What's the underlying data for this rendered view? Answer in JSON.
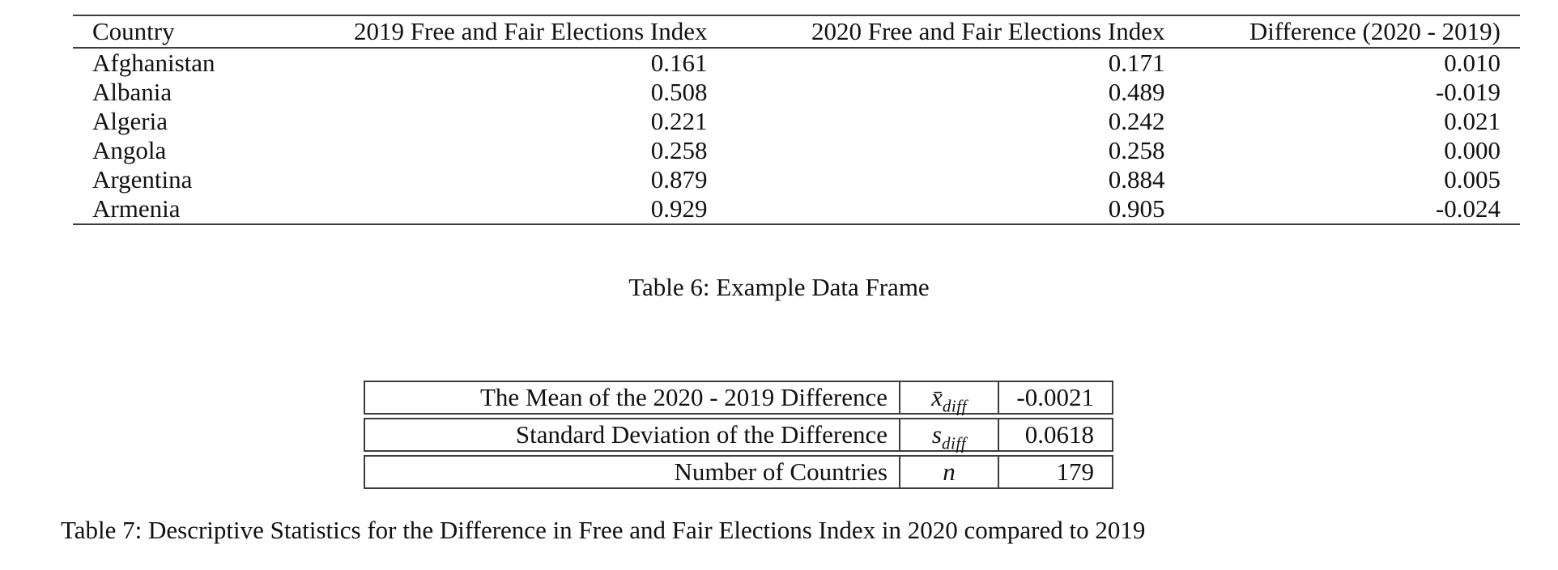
{
  "table6": {
    "columns": {
      "country": "Country",
      "y2019": "2019 Free and Fair Elections Index",
      "y2020": "2020 Free and Fair Elections Index",
      "diff": "Difference (2020 - 2019)"
    },
    "rows": [
      {
        "country": "Afghanistan",
        "y2019": "0.161",
        "y2020": "0.171",
        "diff": "0.010"
      },
      {
        "country": "Albania",
        "y2019": "0.508",
        "y2020": "0.489",
        "diff": "-0.019"
      },
      {
        "country": "Algeria",
        "y2019": "0.221",
        "y2020": "0.242",
        "diff": "0.021"
      },
      {
        "country": "Angola",
        "y2019": "0.258",
        "y2020": "0.258",
        "diff": "0.000"
      },
      {
        "country": "Argentina",
        "y2019": "0.879",
        "y2020": "0.884",
        "diff": "0.005"
      },
      {
        "country": "Armenia",
        "y2019": "0.929",
        "y2020": "0.905",
        "diff": "-0.024"
      }
    ],
    "caption": "Table 6: Example Data Frame"
  },
  "table7": {
    "rows": [
      {
        "label": "The Mean of the 2020 - 2019 Difference",
        "symbol_base": "x̄",
        "symbol_sub": "diff",
        "value": "-0.0021"
      },
      {
        "label": "Standard Deviation of the Difference",
        "symbol_base": "s",
        "symbol_sub": "diff",
        "value": "0.0618"
      },
      {
        "label": "Number of Countries",
        "symbol_base": "n",
        "symbol_sub": "",
        "value": "179"
      }
    ],
    "caption": "Table 7: Descriptive Statistics for the Difference in Free and Fair Elections Index in 2020 compared to 2019"
  },
  "colors": {
    "text": "#111111",
    "rule": "#3d3d3d",
    "background": "#ffffff"
  }
}
